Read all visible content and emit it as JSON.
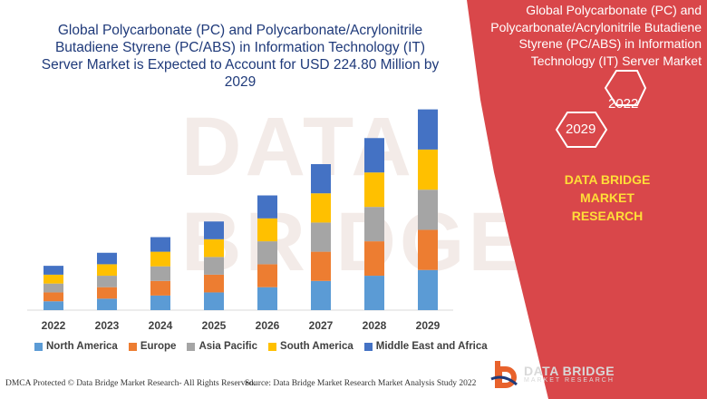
{
  "chart_data": {
    "type": "bar",
    "stacked": true,
    "title": "Global Polycarbonate (PC) and Polycarbonate/Acrylonitrile Butadiene Styrene (PC/ABS) in Information Technology (IT) Server Market is Expected to Account for USD 224.80 Million by 2029",
    "categories": [
      "2022",
      "2023",
      "2024",
      "2025",
      "2026",
      "2027",
      "2028",
      "2029"
    ],
    "series": [
      {
        "name": "North America",
        "color": "#5b9bd5",
        "values": [
          8.5,
          11,
          14,
          17,
          22,
          28,
          33,
          38.5
        ]
      },
      {
        "name": "Europe",
        "color": "#ed7d31",
        "values": [
          8.5,
          11,
          14,
          17,
          22,
          28,
          33,
          38.5
        ]
      },
      {
        "name": "Asia Pacific",
        "color": "#a5a5a5",
        "values": [
          8.5,
          11,
          14,
          17,
          22,
          28,
          33,
          38.5
        ]
      },
      {
        "name": "South America",
        "color": "#ffc000",
        "values": [
          8.5,
          11,
          14,
          17,
          22,
          28,
          33,
          38.5
        ]
      },
      {
        "name": "Middle East and Africa",
        "color": "#4472c4",
        "values": [
          8.5,
          11,
          14,
          17,
          22,
          28,
          33,
          38.5
        ]
      }
    ],
    "ylim": [
      0,
      200
    ],
    "grid": false,
    "legend_position": "bottom"
  },
  "panel": {
    "title": "Global Polycarbonate (PC) and Polycarbonate/Acrylonitrile Butadiene Styrene (PC/ABS) in Information Technology (IT) Server Market",
    "year_start": "2022",
    "year_end": "2029",
    "company": "DATA BRIDGE MARKET RESEARCH",
    "bg_color": "#d9474a",
    "company_color": "#ffde38"
  },
  "watermark": "DATA BRIDGE",
  "footer": {
    "dmca": "DMCA Protected © Data Bridge Market Research- All Rights Reserved.",
    "source": "Source: Data Bridge Market Research Market Analysis Study 2022"
  },
  "logo": {
    "name": "DATA BRIDGE",
    "tagline": "MARKET RESEARCH"
  }
}
